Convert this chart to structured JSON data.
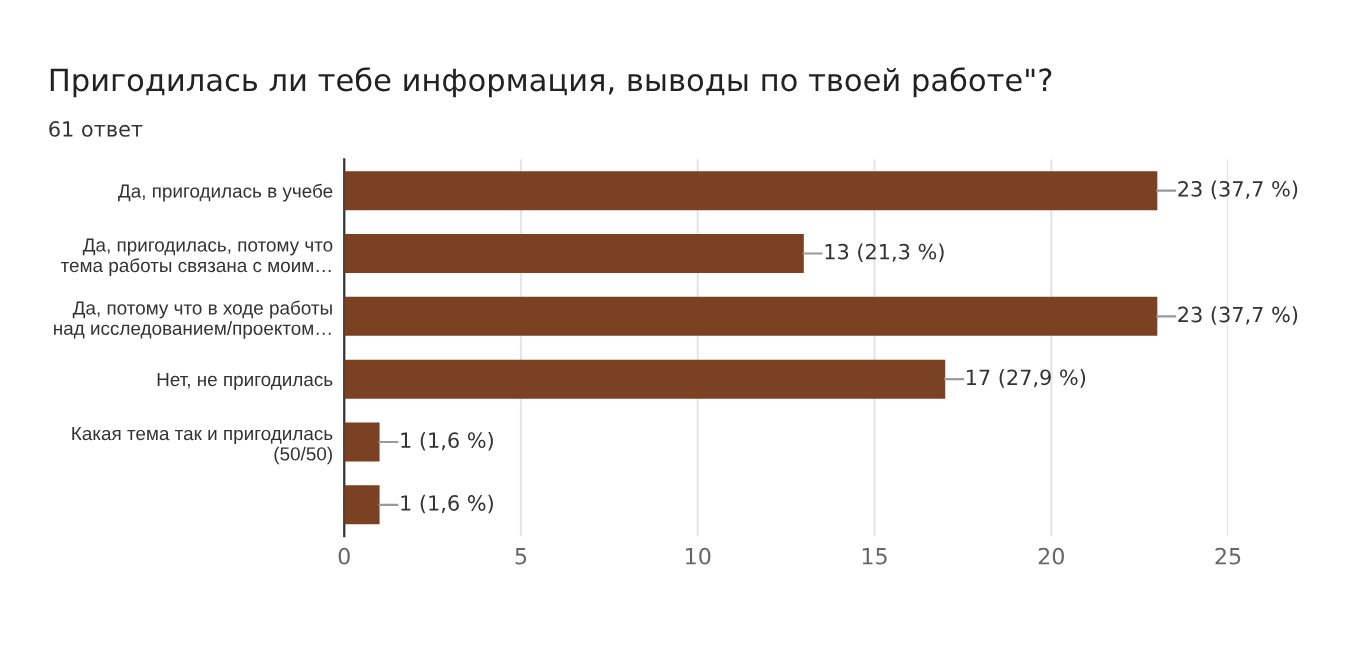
{
  "chart_data": {
    "type": "bar",
    "orientation": "horizontal",
    "title": "Пригодилась ли тебе информация, выводы по твоей работе\"?",
    "subtitle": "61 ответ",
    "categories": [
      "Да, пригодилась в учебе",
      "Да, пригодилась, потому что\nтема работы связана с моим…",
      "Да, потому что в ходе работы\nнад исследованием/проектом…",
      "Нет, не пригодилась",
      "Какая тема так и пригодилась\n(50/50)",
      null
    ],
    "values": [
      23,
      13,
      23,
      17,
      1,
      1
    ],
    "value_labels": [
      "23 (37,7 %)",
      "13 (21,3 %)",
      "23 (37,7 %)",
      "17 (27,9 %)",
      "1 (1,6 %)",
      "1 (1,6 %)"
    ],
    "color": "#7b4123",
    "xlim": [
      0,
      25
    ],
    "xticks": [
      0,
      5,
      10,
      15,
      20,
      25
    ],
    "grid": "x",
    "legend": false
  }
}
